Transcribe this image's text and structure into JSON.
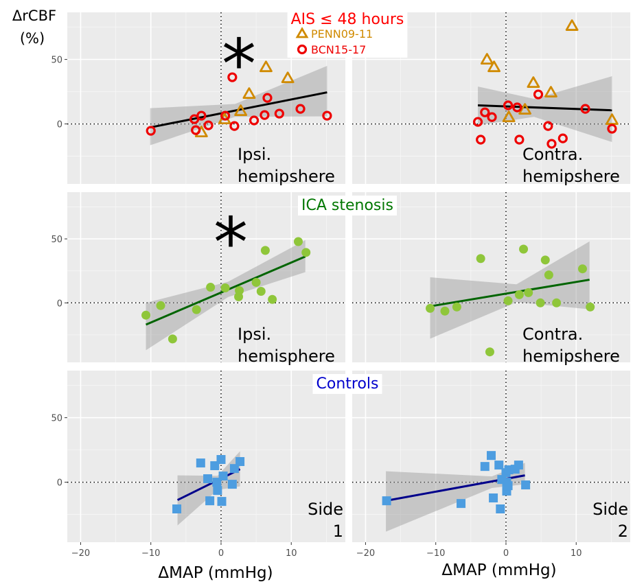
{
  "chart_data": {
    "type": "scatter",
    "y_label": [
      "ΔrCBF",
      "(%)"
    ],
    "x_label": "ΔMAP (mmHg)",
    "xlim": [
      -21.9,
      17.7
    ],
    "ylim": [
      -46.5,
      86.5
    ],
    "xticks": [
      {
        "value": -20,
        "label": "−20"
      },
      {
        "value": -10,
        "label": "−10"
      },
      0,
      10
    ],
    "yticks": [
      0,
      50
    ],
    "grid": true,
    "reference_lines": {
      "x": 0,
      "y": 0
    },
    "rows": [
      {
        "title": "AIS ≤ 48 hours",
        "title_color": "#ff0000",
        "panels": [
          {
            "annotation": [
              "Ipsi.",
              "hemipshere"
            ],
            "annotation_align": "left",
            "asterisk": "*",
            "series": [
              {
                "name": "PENN09-11",
                "marker": "triangle",
                "color": "#d08a00",
                "x": [
                  6.4,
                  9.5,
                  4.0,
                  2.8,
                  0.5,
                  -2.8
                ],
                "y": [
                  44.1,
                  35.6,
                  23.4,
                  10.1,
                  3.7,
                  -6.4
                ]
              },
              {
                "name": "BCN15-17",
                "marker": "circle",
                "color": "#ee0000",
                "x": [
                  -10.0,
                  -3.8,
                  -3.6,
                  -2.8,
                  -1.8,
                  0.6,
                  1.6,
                  1.9,
                  4.7,
                  6.2,
                  6.6,
                  8.3,
                  11.3,
                  15.1
                ],
                "y": [
                  -5.3,
                  3.7,
                  -4.8,
                  6.4,
                  -1.1,
                  6.4,
                  36.2,
                  -1.6,
                  2.7,
                  6.9,
                  20.2,
                  8.0,
                  11.7,
                  6.4
                ]
              }
            ],
            "fit": {
              "color": "#000000",
              "x": [
                -10.1,
                15.1
              ],
              "y": [
                -2.7,
                24.5
              ],
              "band_x": [
                -10.1,
                2,
                15.1
              ],
              "band_lower": [
                -16.5,
                5.5,
                5.9
              ],
              "band_upper": [
                12.2,
                15.5,
                45
              ]
            }
          },
          {
            "annotation": [
              "Contra.",
              "hemipshere"
            ],
            "annotation_align": "left",
            "series": [
              {
                "marker": "triangle",
                "color": "#d08a00",
                "x": [
                  9.4,
                  -2.7,
                  -1.7,
                  3.9,
                  6.4,
                  2.7,
                  0.4,
                  15.1
                ],
                "y": [
                  76.1,
                  50,
                  44.1,
                  31.9,
                  24.5,
                  11.2,
                  5.3,
                  3.2
                ]
              },
              {
                "marker": "circle",
                "color": "#ee0000",
                "x": [
                  -3.0,
                  -4.0,
                  -3.6,
                  -2.0,
                  0.3,
                  1.6,
                  4.6,
                  1.9,
                  6.0,
                  6.5,
                  8.1,
                  11.3,
                  15.1
                ],
                "y": [
                  9.0,
                  1.6,
                  -12.2,
                  5.3,
                  14.4,
                  12.8,
                  22.9,
                  -12.2,
                  -1.6,
                  -15.4,
                  -11.2,
                  11.7,
                  -3.7
                ]
              }
            ],
            "fit": {
              "color": "#000000",
              "x": [
                -4.0,
                15.1
              ],
              "y": [
                14.4,
                10.6
              ],
              "band_x": [
                -4.0,
                4,
                15.1
              ],
              "band_lower": [
                -1,
                5.5,
                -14
              ],
              "band_upper": [
                29,
                19.5,
                37
              ]
            }
          }
        ]
      },
      {
        "title": "ICA stenosis",
        "title_color": "#007700",
        "panels": [
          {
            "annotation": [
              "Ipsi.",
              "hemisphere"
            ],
            "annotation_align": "left",
            "asterisk": "*",
            "series": [
              {
                "marker": "dot",
                "color": "#8fc63a",
                "x": [
                  -10.7,
                  -8.6,
                  -6.9,
                  -3.5,
                  -1.5,
                  0.6,
                  2.5,
                  2.6,
                  5.0,
                  5.7,
                  6.3,
                  7.3,
                  11.0,
                  12.1
                ],
                "y": [
                  -9.6,
                  -2.1,
                  -28.2,
                  -5.3,
                  12.2,
                  11.7,
                  4.8,
                  9.6,
                  16.0,
                  9.0,
                  41.0,
                  2.7,
                  47.9,
                  39.4
                ]
              }
            ],
            "fit": {
              "color": "#006400",
              "x": [
                -10.7,
                12.0
              ],
              "y": [
                -17.0,
                36.2
              ],
              "band_x": [
                -10.7,
                1,
                12.0
              ],
              "band_lower": [
                -37,
                4.5,
                24
              ],
              "band_upper": [
                0,
                16.5,
                49
              ]
            }
          },
          {
            "annotation": [
              "Contra.",
              "hemipshere"
            ],
            "annotation_align": "left",
            "series": [
              {
                "marker": "dot",
                "color": "#8fc63a",
                "x": [
                  -10.8,
                  -8.7,
                  -7.0,
                  -3.6,
                  -2.3,
                  0.3,
                  1.9,
                  2.5,
                  3.2,
                  4.9,
                  5.6,
                  6.1,
                  7.2,
                  10.9,
                  12.0
                ],
                "y": [
                  -4.3,
                  -6.4,
                  -3.2,
                  34.6,
                  -38.3,
                  1.6,
                  6.4,
                  42.0,
                  8.0,
                  0,
                  33.5,
                  21.8,
                  0,
                  26.6,
                  -3.2
                ]
              }
            ],
            "fit": {
              "color": "#006400",
              "x": [
                -10.8,
                11.9
              ],
              "y": [
                -2.7,
                18.1
              ],
              "band_x": [
                -10.8,
                1.5,
                11.9
              ],
              "band_lower": [
                -28,
                0.5,
                -5
              ],
              "band_upper": [
                20,
                14.5,
                48
              ]
            }
          }
        ]
      },
      {
        "title": "Controls",
        "title_color": "#0000cc",
        "panels": [
          {
            "annotation": [
              "Side",
              "1"
            ],
            "annotation_align": "right",
            "series": [
              {
                "marker": "square",
                "color": "#4d9de0",
                "x": [
                  -6.3,
                  -2.9,
                  -1.9,
                  -1.6,
                  -0.9,
                  -0.6,
                  -0.5,
                  0,
                  0.1,
                  0.3,
                  1.6,
                  1.9,
                  2.7
                ],
                "y": [
                  -20.7,
                  14.9,
                  2.7,
                  -14.4,
                  12.8,
                  0,
                  -6.4,
                  17.6,
                  -14.9,
                  4.8,
                  -1.6,
                  10.6,
                  16.0
                ]
              }
            ],
            "fit": {
              "color": "#00008b",
              "x": [
                -6.2,
                2.7
              ],
              "y": [
                -13.8,
                10.1
              ],
              "band_x": [
                -6.2,
                -0.5,
                2.7
              ],
              "band_lower": [
                -33.5,
                -6,
                -3.2
              ],
              "band_upper": [
                5.3,
                5,
                24
              ]
            }
          },
          {
            "annotation": [
              "Side",
              "2"
            ],
            "annotation_align": "right",
            "series": [
              {
                "marker": "square",
                "color": "#4d9de0",
                "x": [
                  -17.0,
                  -6.4,
                  -3.0,
                  -2.1,
                  -1.8,
                  -1.0,
                  -0.8,
                  -0.6,
                  0,
                  0.1,
                  0.1,
                  0.3,
                  0.4,
                  1.3,
                  1.8,
                  2.8
                ],
                "y": [
                  -14.4,
                  -16.5,
                  12.2,
                  20.7,
                  -12.2,
                  13.3,
                  -20.7,
                  2.1,
                  7.4,
                  0,
                  -6.9,
                  -2.7,
                  9.6,
                  10.1,
                  13.3,
                  -2.1
                ]
              }
            ],
            "fit": {
              "color": "#00008b",
              "x": [
                -17.1,
                2.7
              ],
              "y": [
                -14.4,
                5.3
              ],
              "band_x": [
                -17.1,
                -2,
                2.7
              ],
              "band_lower": [
                -38.3,
                -4.5,
                -1.6
              ],
              "band_upper": [
                8.5,
                4.5,
                15
              ]
            }
          }
        ]
      }
    ]
  }
}
